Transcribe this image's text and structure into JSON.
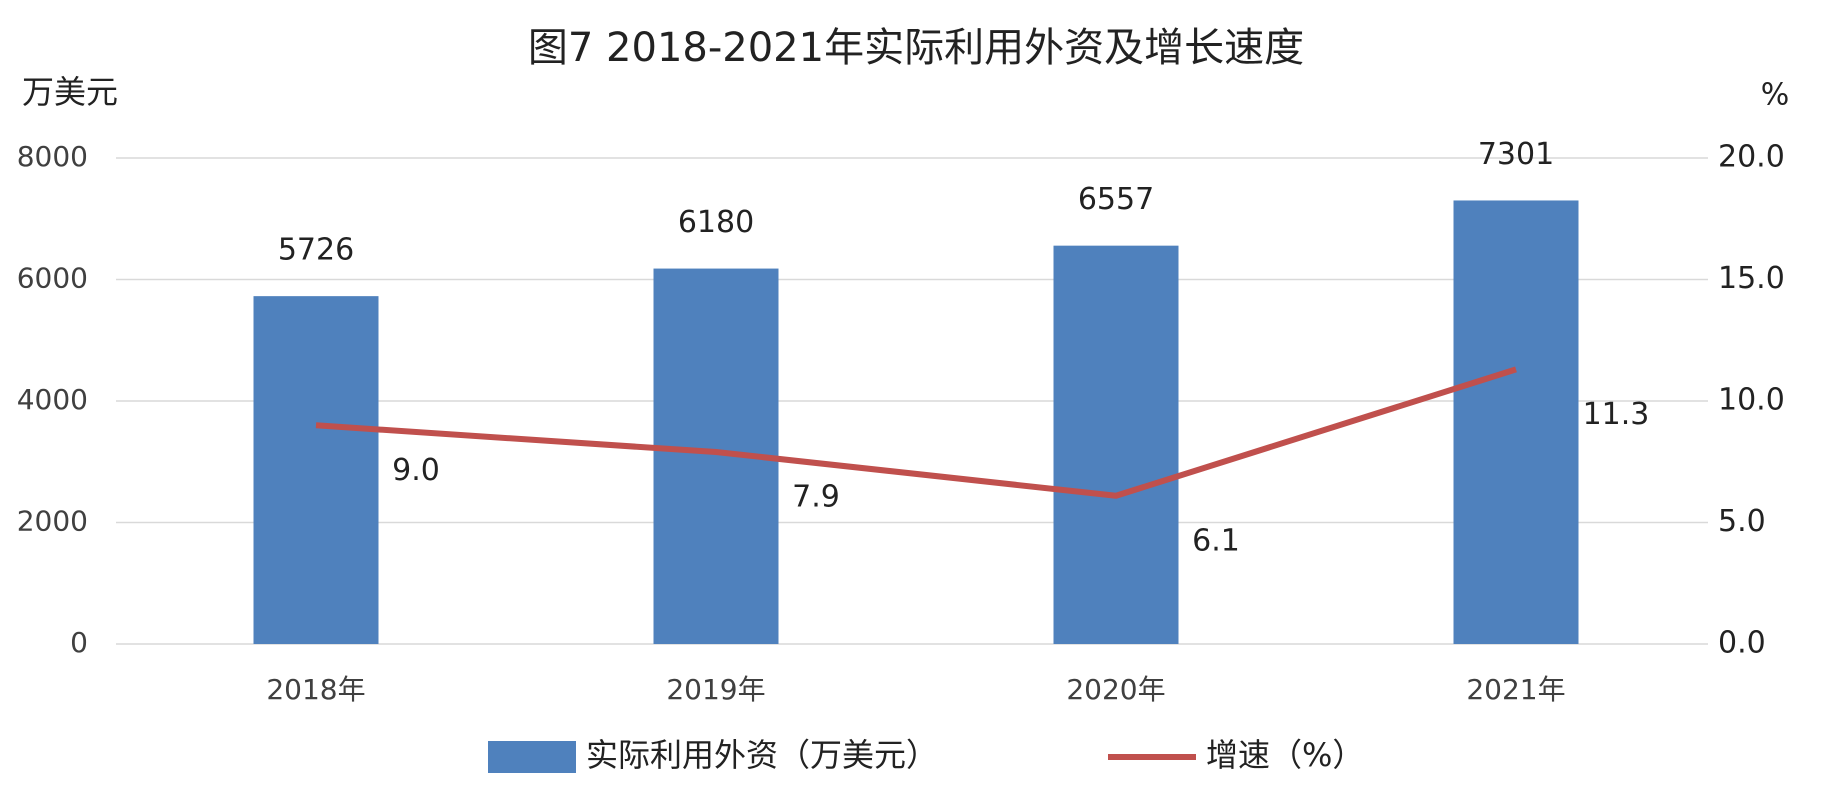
{
  "chart_data": {
    "type": "bar_line",
    "title": "图7  2018-2021年实际利用外资及增长速度",
    "y_label": "万美元",
    "y2_label": "%",
    "categories": [
      "2018年",
      "2019年",
      "2020年",
      "2021年"
    ],
    "series": [
      {
        "name": "实际利用外资（万美元）",
        "type": "bar",
        "color": "#4f81bd",
        "values": [
          5726,
          6180,
          6557,
          7301
        ]
      },
      {
        "name": "增速（%）",
        "type": "line",
        "axis": "y2",
        "color": "#c0504d",
        "values": [
          9.0,
          7.9,
          6.1,
          11.3
        ],
        "value_labels": [
          "9.0",
          "7.9",
          "6.1",
          "11.3"
        ]
      }
    ],
    "ylim": [
      0,
      8000
    ],
    "yticks": [
      0,
      2000,
      4000,
      6000,
      8000
    ],
    "y2lim": [
      0,
      20
    ],
    "y2ticks": [
      {
        "value": 0,
        "label": "0.0"
      },
      {
        "value": 5,
        "label": "5.0"
      },
      {
        "value": 10,
        "label": "10.0"
      },
      {
        "value": 15,
        "label": "15.0"
      },
      {
        "value": 20,
        "label": "20.0"
      }
    ],
    "grid": true,
    "legend": "bottom"
  }
}
